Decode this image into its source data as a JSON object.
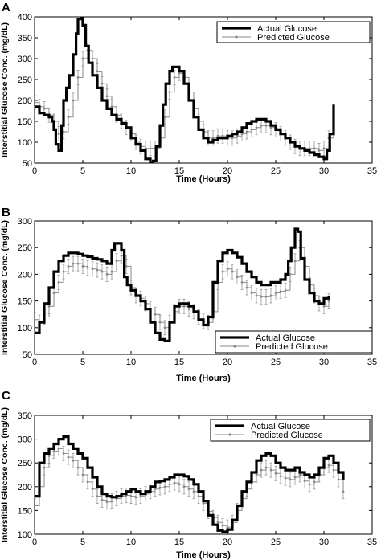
{
  "chart_data": [
    {
      "type": "line",
      "panel_label": "A",
      "xlabel": "Time (Hours)",
      "ylabel": "Interstitial Glucose Conc. (mg/dL)",
      "xlim": [
        0,
        35
      ],
      "ylim": [
        50,
        400
      ],
      "x_ticks": [
        0,
        5,
        10,
        15,
        20,
        25,
        30,
        35
      ],
      "y_ticks": [
        50,
        100,
        150,
        200,
        250,
        300,
        350,
        400
      ],
      "legend_position": "top-right",
      "grid": false,
      "series": [
        {
          "name": "Actual Glucose",
          "color": "#000000",
          "x": [
            0,
            0.5,
            1,
            1.5,
            1.8,
            2,
            2.2,
            2.5,
            2.8,
            3,
            3.3,
            3.6,
            4,
            4.3,
            4.5,
            4.8,
            5,
            5.3,
            5.6,
            6,
            6.5,
            7,
            7.5,
            8,
            8.5,
            9,
            9.5,
            10,
            10.5,
            11,
            11.5,
            12,
            12.3,
            12.6,
            13,
            13.3,
            13.6,
            14,
            14.3,
            14.6,
            15,
            15.5,
            16,
            16.5,
            17,
            17.5,
            18,
            18.5,
            19,
            19.5,
            20,
            20.5,
            21,
            21.5,
            22,
            22.5,
            23,
            23.5,
            24,
            24.5,
            25,
            25.5,
            26,
            26.5,
            27,
            27.5,
            28,
            28.5,
            29,
            29.5,
            30,
            30.3,
            30.6,
            31
          ],
          "y": [
            185,
            170,
            165,
            160,
            150,
            130,
            95,
            80,
            140,
            200,
            230,
            260,
            310,
            360,
            395,
            400,
            380,
            330,
            290,
            260,
            230,
            200,
            180,
            165,
            155,
            145,
            135,
            110,
            95,
            80,
            60,
            50,
            55,
            90,
            140,
            190,
            240,
            270,
            280,
            280,
            270,
            240,
            200,
            160,
            130,
            110,
            100,
            105,
            110,
            110,
            115,
            120,
            125,
            135,
            145,
            150,
            155,
            155,
            150,
            140,
            130,
            120,
            110,
            100,
            90,
            85,
            80,
            75,
            70,
            65,
            60,
            80,
            120,
            190
          ]
        },
        {
          "name": "Predicted Glucose",
          "color": "#8a8a8a",
          "x": [
            0,
            0.5,
            1,
            1.5,
            2,
            2.5,
            3,
            3.5,
            4,
            4.5,
            5,
            5.5,
            6,
            6.5,
            7,
            7.5,
            8,
            8.5,
            9,
            9.5,
            10,
            10.5,
            11,
            11.5,
            12,
            12.5,
            13,
            13.5,
            14,
            14.5,
            15,
            15.5,
            16,
            16.5,
            17,
            17.5,
            18,
            18.5,
            19,
            19.5,
            20,
            20.5,
            21,
            21.5,
            22,
            22.5,
            23,
            23.5,
            24,
            24.5,
            25,
            25.5,
            26,
            26.5,
            27,
            27.5,
            28,
            28.5,
            29,
            29.5,
            30,
            30.5,
            31
          ],
          "y": [
            195,
            185,
            180,
            165,
            150,
            120,
            125,
            160,
            200,
            255,
            300,
            320,
            300,
            270,
            240,
            210,
            185,
            165,
            150,
            135,
            120,
            100,
            90,
            85,
            85,
            85,
            110,
            160,
            220,
            255,
            265,
            255,
            220,
            180,
            150,
            125,
            110,
            110,
            115,
            115,
            110,
            110,
            115,
            120,
            125,
            130,
            135,
            140,
            140,
            135,
            130,
            120,
            110,
            100,
            90,
            85,
            85,
            85,
            85,
            80,
            85,
            110,
            130
          ]
        }
      ]
    },
    {
      "type": "line",
      "panel_label": "B",
      "xlabel": "Time (Hours)",
      "ylabel": "Interstitial Glucose Conc. (mg/dL)",
      "xlim": [
        0,
        35
      ],
      "ylim": [
        50,
        300
      ],
      "x_ticks": [
        0,
        5,
        10,
        15,
        20,
        25,
        30,
        35
      ],
      "y_ticks": [
        50,
        100,
        150,
        200,
        250,
        300
      ],
      "legend_position": "bottom-right",
      "grid": false,
      "series": [
        {
          "name": "Actual Glucose",
          "color": "#000000",
          "x": [
            0,
            0.5,
            1,
            1.5,
            2,
            2.5,
            3,
            3.5,
            4,
            4.5,
            5,
            5.5,
            6,
            6.5,
            7,
            7.5,
            8,
            8.3,
            8.6,
            9,
            9.3,
            9.6,
            10,
            10.5,
            11,
            11.5,
            12,
            12.5,
            13,
            13.5,
            14,
            14.5,
            15,
            15.5,
            16,
            16.5,
            17,
            17.5,
            18,
            18.5,
            19,
            19.5,
            20,
            20.5,
            21,
            21.5,
            22,
            22.5,
            23,
            23.5,
            24,
            24.5,
            25,
            25.5,
            26,
            26.3,
            26.6,
            27,
            27.3,
            27.6,
            28,
            28.5,
            29,
            29.5,
            30,
            30.5
          ],
          "y": [
            90,
            110,
            145,
            175,
            205,
            225,
            235,
            240,
            240,
            238,
            235,
            233,
            230,
            228,
            225,
            220,
            245,
            258,
            258,
            245,
            195,
            180,
            170,
            160,
            150,
            135,
            110,
            90,
            78,
            75,
            110,
            140,
            145,
            145,
            140,
            130,
            115,
            105,
            120,
            185,
            225,
            240,
            245,
            240,
            232,
            220,
            205,
            195,
            185,
            180,
            180,
            185,
            185,
            190,
            200,
            225,
            250,
            285,
            280,
            230,
            190,
            165,
            150,
            145,
            155,
            160
          ]
        },
        {
          "name": "Predicted Glucose",
          "color": "#8a8a8a",
          "x": [
            0,
            0.5,
            1,
            1.5,
            2,
            2.5,
            3,
            3.5,
            4,
            4.5,
            5,
            5.5,
            6,
            6.5,
            7,
            7.5,
            8,
            8.5,
            9,
            9.5,
            10,
            10.5,
            11,
            11.5,
            12,
            12.5,
            13,
            13.5,
            14,
            14.5,
            15,
            15.5,
            16,
            16.5,
            17,
            17.5,
            18,
            18.5,
            19,
            19.5,
            20,
            20.5,
            21,
            21.5,
            22,
            22.5,
            23,
            23.5,
            24,
            24.5,
            25,
            25.5,
            26,
            26.5,
            27,
            27.5,
            28,
            28.5,
            29,
            29.5,
            30,
            30.5
          ],
          "y": [
            115,
            110,
            120,
            140,
            165,
            185,
            205,
            215,
            220,
            220,
            215,
            212,
            210,
            208,
            205,
            200,
            205,
            225,
            235,
            215,
            175,
            160,
            155,
            145,
            135,
            125,
            110,
            100,
            110,
            130,
            140,
            140,
            135,
            130,
            120,
            112,
            110,
            130,
            185,
            205,
            210,
            205,
            195,
            185,
            175,
            165,
            160,
            158,
            158,
            160,
            165,
            168,
            170,
            200,
            225,
            250,
            215,
            180,
            160,
            145,
            140,
            150
          ]
        }
      ]
    },
    {
      "type": "line",
      "panel_label": "C",
      "xlabel": "Time (Hours)",
      "ylabel": "Interstitial Glucose Conc. (mg/dL)",
      "xlim": [
        0,
        35
      ],
      "ylim": [
        100,
        350
      ],
      "x_ticks": [
        0,
        5,
        10,
        15,
        20,
        25,
        30,
        35
      ],
      "y_ticks": [
        100,
        150,
        200,
        250,
        300,
        350
      ],
      "legend_position": "top-right",
      "grid": false,
      "series": [
        {
          "name": "Actual Glucose",
          "color": "#000000",
          "x": [
            0,
            0.5,
            1,
            1.5,
            2,
            2.5,
            3,
            3.5,
            4,
            4.5,
            5,
            5.5,
            6,
            6.5,
            7,
            7.5,
            8,
            8.5,
            9,
            9.5,
            10,
            10.5,
            11,
            11.5,
            12,
            12.5,
            13,
            13.5,
            14,
            14.5,
            15,
            15.5,
            16,
            16.5,
            17,
            17.5,
            18,
            18.5,
            19,
            19.5,
            20,
            20.5,
            21,
            21.5,
            22,
            22.5,
            23,
            23.5,
            24,
            24.5,
            25,
            25.5,
            26,
            26.5,
            27,
            27.5,
            28,
            28.5,
            29,
            29.5,
            30,
            30.5,
            31,
            31.5,
            32
          ],
          "y": [
            180,
            250,
            270,
            280,
            290,
            300,
            305,
            290,
            280,
            270,
            260,
            240,
            220,
            200,
            185,
            180,
            178,
            180,
            185,
            190,
            195,
            190,
            185,
            190,
            200,
            210,
            212,
            215,
            220,
            225,
            225,
            222,
            215,
            205,
            190,
            170,
            140,
            120,
            108,
            105,
            110,
            130,
            160,
            190,
            210,
            230,
            255,
            265,
            270,
            265,
            250,
            240,
            235,
            235,
            240,
            230,
            225,
            220,
            225,
            240,
            260,
            265,
            250,
            230,
            215
          ]
        },
        {
          "name": "Predicted Glucose",
          "color": "#8a8a8a",
          "x": [
            0,
            0.5,
            1,
            1.5,
            2,
            2.5,
            3,
            3.5,
            4,
            4.5,
            5,
            5.5,
            6,
            6.5,
            7,
            7.5,
            8,
            8.5,
            9,
            9.5,
            10,
            10.5,
            11,
            11.5,
            12,
            12.5,
            13,
            13.5,
            14,
            14.5,
            15,
            15.5,
            16,
            16.5,
            17,
            17.5,
            18,
            18.5,
            19,
            19.5,
            20,
            20.5,
            21,
            21.5,
            22,
            22.5,
            23,
            23.5,
            24,
            24.5,
            25,
            25.5,
            26,
            26.5,
            27,
            27.5,
            28,
            28.5,
            29,
            29.5,
            30,
            30.5,
            31,
            31.5,
            32
          ],
          "y": [
            160,
            200,
            240,
            265,
            275,
            280,
            270,
            262,
            255,
            240,
            225,
            210,
            195,
            180,
            172,
            168,
            170,
            175,
            180,
            182,
            180,
            178,
            180,
            185,
            190,
            195,
            198,
            200,
            205,
            208,
            205,
            200,
            195,
            190,
            180,
            165,
            148,
            135,
            125,
            118,
            115,
            125,
            150,
            175,
            195,
            210,
            225,
            235,
            240,
            235,
            228,
            222,
            218,
            215,
            220,
            225,
            212,
            205,
            210,
            225,
            240,
            245,
            235,
            215,
            190
          ]
        }
      ]
    }
  ]
}
